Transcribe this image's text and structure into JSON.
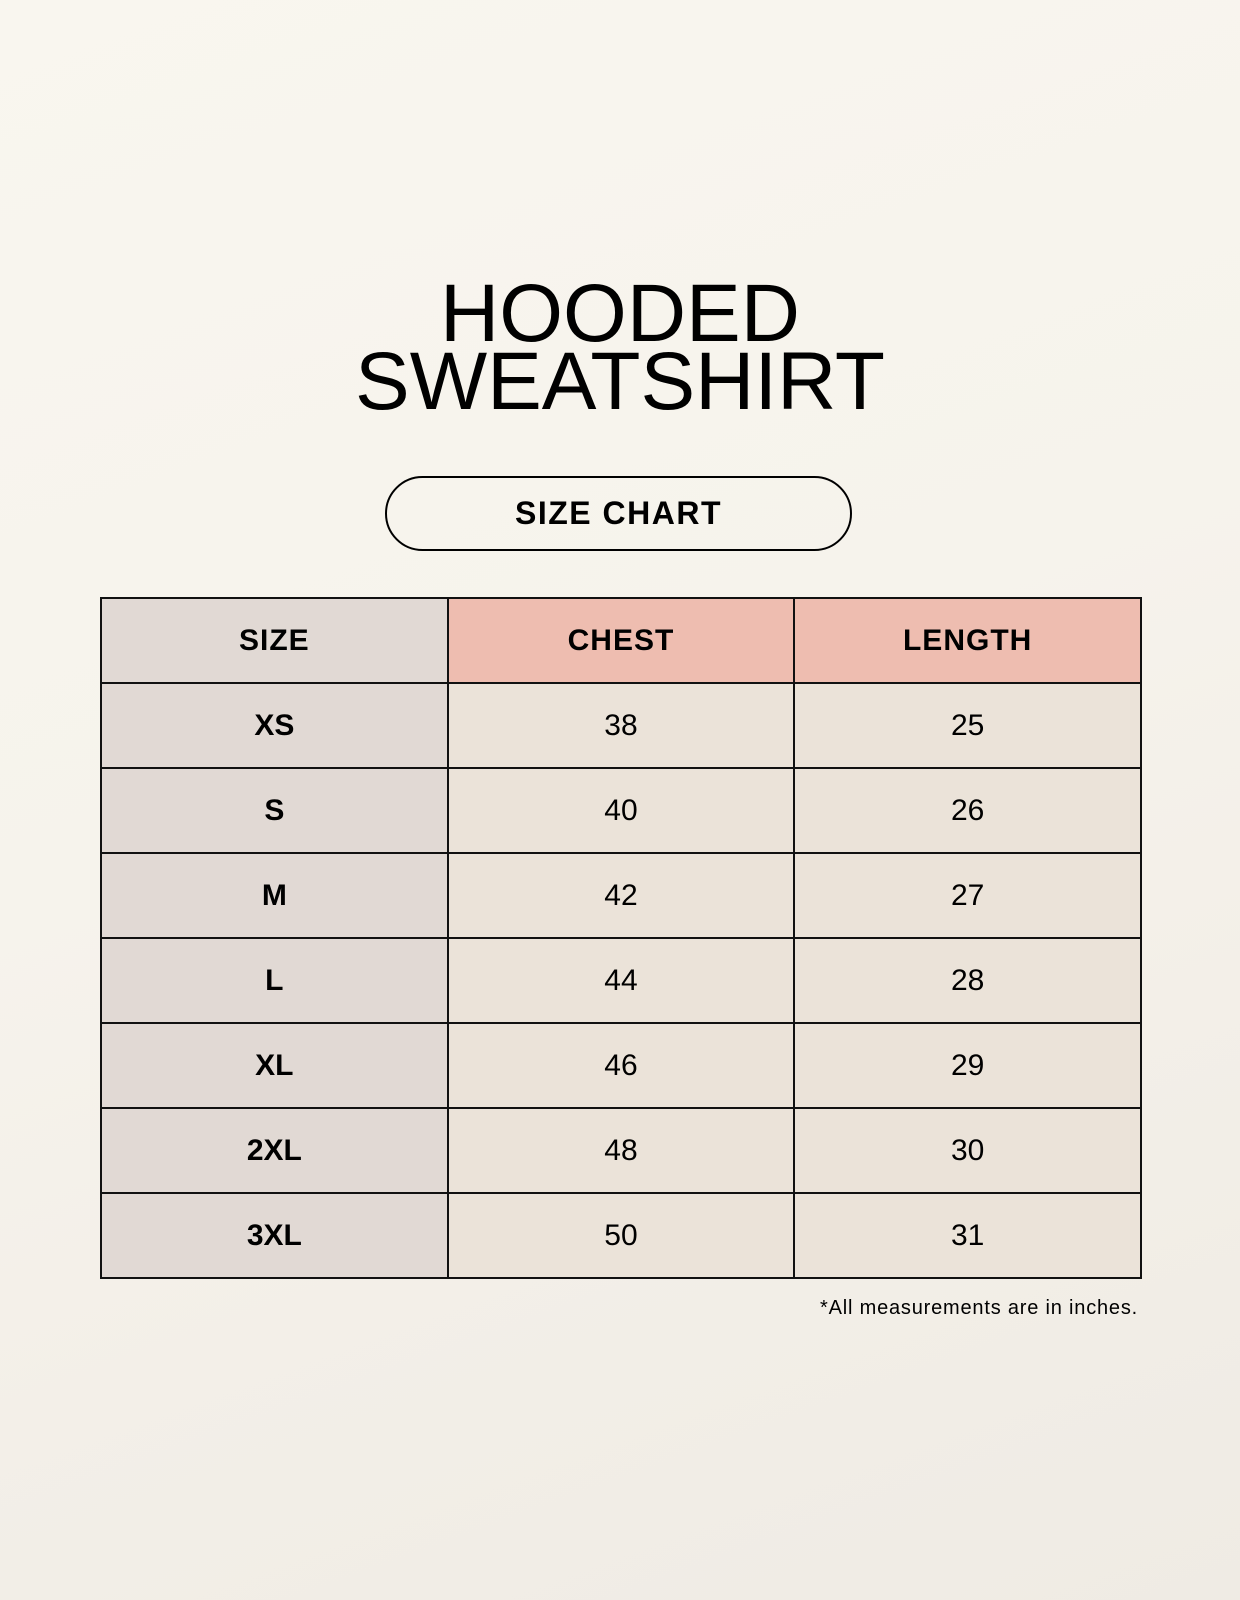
{
  "title": {
    "line1": "HOODED",
    "line2": "SWEATSHIRT"
  },
  "subtitle": "SIZE CHART",
  "table": {
    "headers": [
      "SIZE",
      "CHEST",
      "LENGTH"
    ],
    "rows": [
      [
        "XS",
        "38",
        "25"
      ],
      [
        "S",
        "40",
        "26"
      ],
      [
        "M",
        "42",
        "27"
      ],
      [
        "L",
        "44",
        "28"
      ],
      [
        "XL",
        "46",
        "29"
      ],
      [
        "2XL",
        "48",
        "30"
      ],
      [
        "3XL",
        "50",
        "31"
      ]
    ]
  },
  "footnote": "*All measurements are in inches.",
  "colors": {
    "size_column": "#e1d9d4",
    "header_accent": "#eebdb0",
    "cell": "#ebe3d9",
    "background": "#f8f5ee"
  }
}
